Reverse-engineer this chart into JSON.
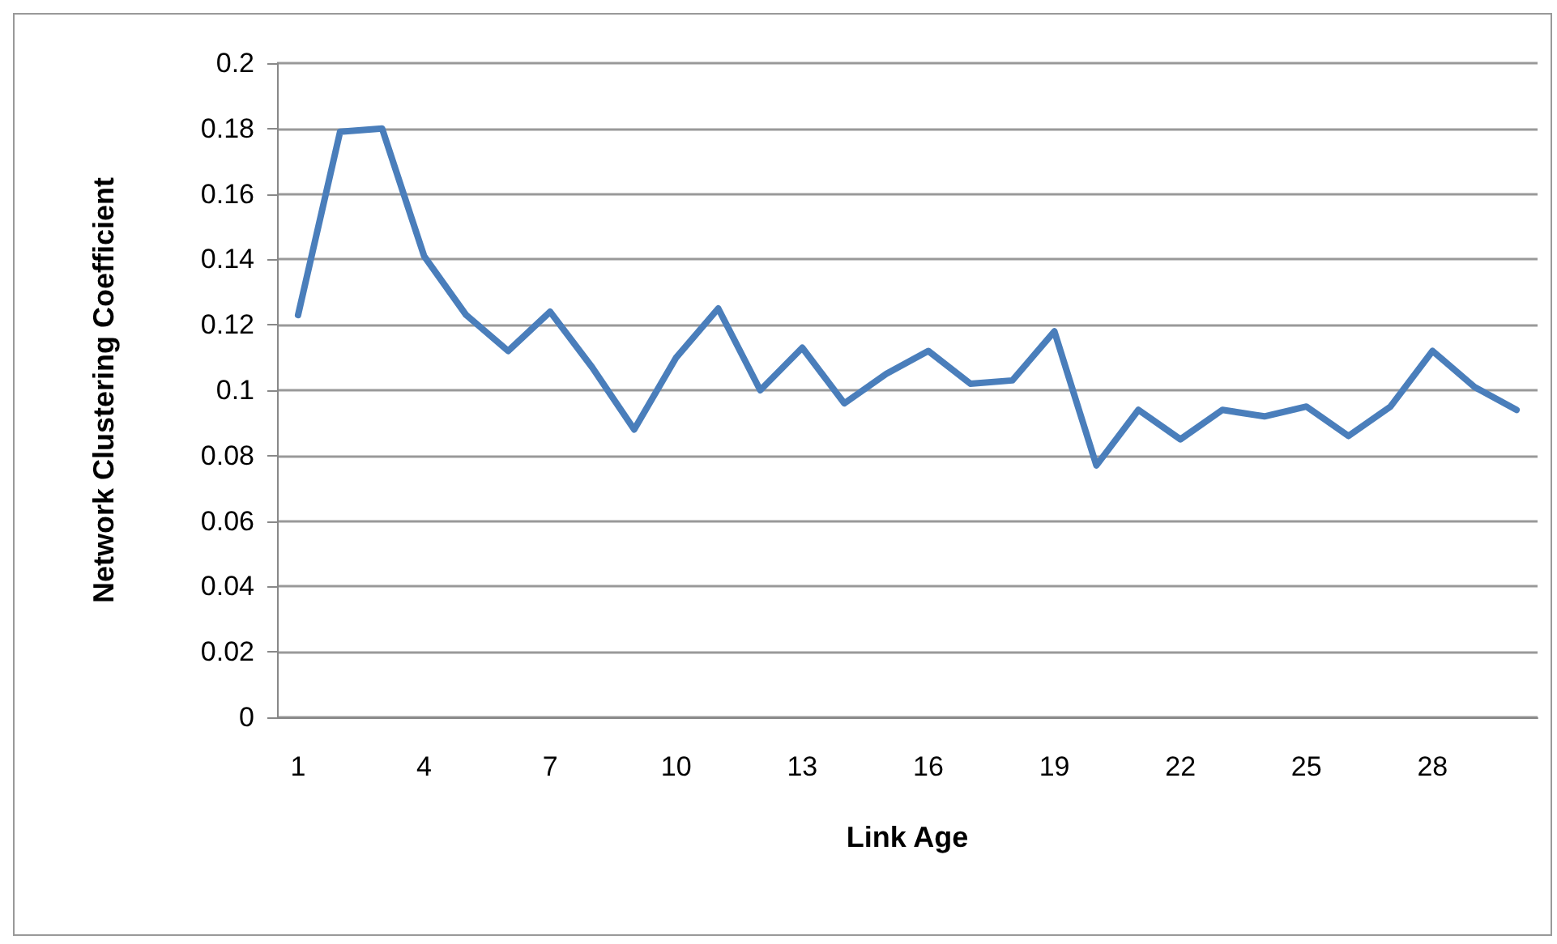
{
  "chart_data": {
    "type": "line",
    "xlabel": "Link Age",
    "ylabel": "Network Clustering Coefficient",
    "categories": [
      "1",
      null,
      null,
      "4",
      null,
      null,
      "7",
      null,
      null,
      "10",
      null,
      null,
      "13",
      null,
      null,
      "16",
      null,
      null,
      "19",
      null,
      null,
      "22",
      null,
      null,
      "25",
      null,
      null,
      "28",
      null,
      null
    ],
    "series": [
      {
        "color": "#4a7ebb",
        "values": [
          0.123,
          0.179,
          0.18,
          0.141,
          0.123,
          0.112,
          0.124,
          0.107,
          0.088,
          0.11,
          0.125,
          0.1,
          0.113,
          0.096,
          0.105,
          0.112,
          0.102,
          0.103,
          0.118,
          0.077,
          0.094,
          0.085,
          0.094,
          0.092,
          0.095,
          0.086,
          0.095,
          0.112,
          0.101,
          0.094
        ]
      }
    ],
    "ylim": [
      0,
      0.2
    ],
    "yticks": [
      0,
      0.02,
      0.04,
      0.06,
      0.08,
      0.1,
      0.12,
      0.14,
      0.16,
      0.18,
      0.2
    ],
    "grid": "y",
    "marker": "none",
    "line_style": "solid"
  }
}
